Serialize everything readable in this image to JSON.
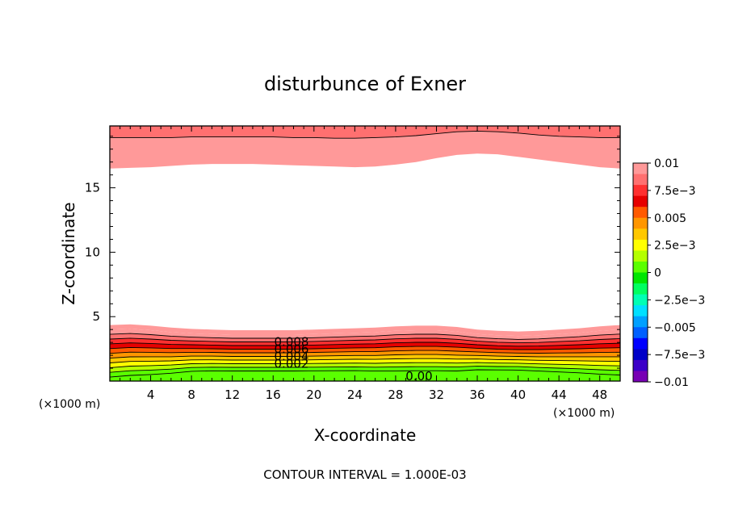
{
  "chart_data": {
    "type": "heatmap",
    "subtype": "filled-contour",
    "title": "disturbunce of Exner",
    "xlabel": "X-coordinate",
    "ylabel": "Z-coordinate",
    "x_unit": "(×1000 m)",
    "y_unit": "(×1000 m)",
    "xlim": [
      0,
      50
    ],
    "ylim": [
      0,
      19.8
    ],
    "x_ticks": [
      4,
      8,
      12,
      16,
      20,
      24,
      28,
      32,
      36,
      40,
      44,
      48
    ],
    "y_ticks": [
      5,
      10,
      15
    ],
    "contour_interval_text": "CONTOUR INTERVAL = 1.000E-03",
    "contour_interval": 0.001,
    "contour_labels": [
      "0.008",
      "0.006",
      "0.004",
      "0.002",
      "0.00"
    ],
    "colorbar": {
      "min": -0.01,
      "max": 0.01,
      "labels": [
        "0.01",
        "7.5e-3",
        "0.005",
        "2.5e-3",
        "0",
        "-2.5e-3",
        "-0.005",
        "-7.5e-3",
        "-0.01"
      ],
      "colors": [
        "#ff9999",
        "#ff7070",
        "#ff3030",
        "#e60000",
        "#ff5a00",
        "#ff9600",
        "#ffc800",
        "#ffff00",
        "#b4ff00",
        "#5aff00",
        "#00e600",
        "#00ff60",
        "#00ffb4",
        "#00e0ff",
        "#00a0ff",
        "#0060ff",
        "#0000ff",
        "#0000c8",
        "#3c00c8",
        "#7800b4"
      ]
    },
    "profile_x": [
      0,
      2,
      4,
      6,
      8,
      10,
      12,
      14,
      16,
      18,
      20,
      22,
      24,
      26,
      28,
      30,
      32,
      34,
      36,
      38,
      40,
      42,
      44,
      46,
      48,
      50
    ],
    "lower_region": {
      "levels": [
        0,
        0.001,
        0.002,
        0.003,
        0.004,
        0.005,
        0.006,
        0.007,
        0.008,
        0.009,
        0.01
      ],
      "top_height_km": [
        4.0,
        4.05,
        3.95,
        3.8,
        3.7,
        3.65,
        3.6,
        3.6,
        3.6,
        3.6,
        3.65,
        3.7,
        3.75,
        3.8,
        3.9,
        3.95,
        3.95,
        3.85,
        3.65,
        3.55,
        3.5,
        3.55,
        3.65,
        3.75,
        3.9,
        4.0
      ],
      "slope_per_level": [
        0.88,
        0.86,
        0.82,
        0.76,
        0.7,
        0.68,
        0.67,
        0.67,
        0.67,
        0.67,
        0.68,
        0.69,
        0.7,
        0.72,
        0.74,
        0.75,
        0.75,
        0.73,
        0.66,
        0.64,
        0.63,
        0.66,
        0.7,
        0.74,
        0.8,
        0.84
      ]
    },
    "upper_region": {
      "levels": [
        0.008,
        0.009,
        0.01
      ],
      "heights_km": [
        [
          16.5,
          16.55,
          16.6,
          16.7,
          16.8,
          16.85,
          16.85,
          16.85,
          16.8,
          16.75,
          16.7,
          16.65,
          16.6,
          16.65,
          16.8,
          17.0,
          17.3,
          17.55,
          17.65,
          17.6,
          17.4,
          17.2,
          17.0,
          16.8,
          16.6,
          16.5
        ],
        [
          18.9,
          18.9,
          18.9,
          18.9,
          18.95,
          18.95,
          18.95,
          18.95,
          18.95,
          18.9,
          18.9,
          18.85,
          18.85,
          18.9,
          18.95,
          19.05,
          19.2,
          19.35,
          19.4,
          19.35,
          19.25,
          19.1,
          19.0,
          18.95,
          18.9,
          18.9
        ],
        [
          19.8,
          19.8,
          19.8,
          19.8,
          19.8,
          19.8,
          19.8,
          19.8,
          19.8,
          19.8,
          19.8,
          19.8,
          19.8,
          19.8,
          19.8,
          19.8,
          19.8,
          19.8,
          19.8,
          19.8,
          19.8,
          19.8,
          19.8,
          19.8,
          19.8,
          19.8
        ]
      ]
    }
  }
}
